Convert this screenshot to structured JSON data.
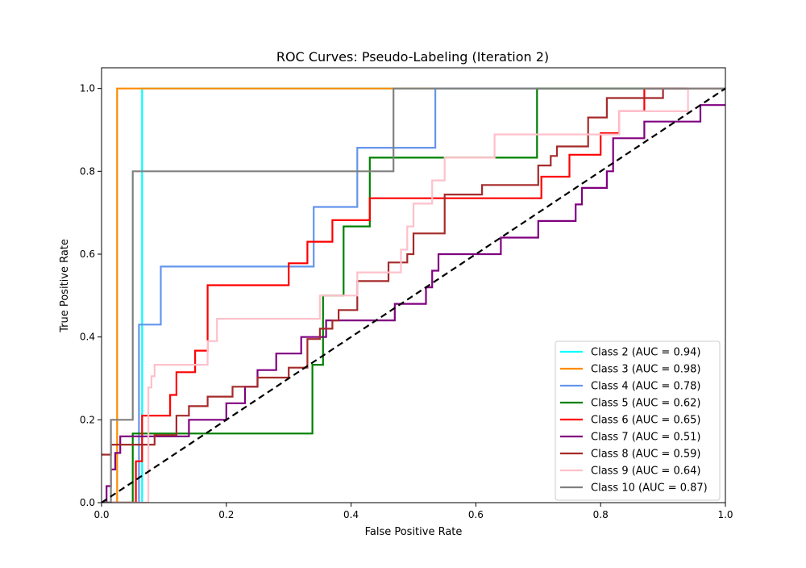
{
  "chart_data": {
    "type": "line",
    "title": "ROC Curves: Pseudo-Labeling (Iteration 2)",
    "xlabel": "False Positive Rate",
    "ylabel": "True Positive Rate",
    "xlim": [
      0,
      1
    ],
    "ylim": [
      0,
      1.05
    ],
    "xticks": [
      0,
      0.2,
      0.4,
      0.6,
      0.8,
      1
    ],
    "yticks": [
      0,
      0.2,
      0.4,
      0.6,
      0.8,
      1
    ],
    "xtick_labels": [
      "0.0",
      "0.2",
      "0.4",
      "0.6",
      "0.8",
      "1.0"
    ],
    "ytick_labels": [
      "0.0",
      "0.2",
      "0.4",
      "0.6",
      "0.8",
      "1.0"
    ],
    "grid": false,
    "legend_position": "lower-right",
    "diagonal": {
      "x": [
        0,
        1
      ],
      "y": [
        0,
        1
      ],
      "color": "#000000",
      "style": "dashed"
    },
    "series": [
      {
        "name": "Class 2 (AUC = 0.94)",
        "color": "#00ffff",
        "x": [
          0.0,
          0.065,
          0.065,
          1.0
        ],
        "y": [
          0.0,
          0.0,
          1.0,
          1.0
        ]
      },
      {
        "name": "Class 3 (AUC = 0.98)",
        "color": "#ff8c00",
        "x": [
          0.0,
          0.025,
          0.025,
          1.0
        ],
        "y": [
          0.0,
          0.0,
          1.0,
          1.0
        ]
      },
      {
        "name": "Class 4 (AUC = 0.78)",
        "color": "#6495ed",
        "x": [
          0.0,
          0.06,
          0.06,
          0.095,
          0.095,
          0.34,
          0.34,
          0.41,
          0.41,
          0.535,
          0.535,
          1.0
        ],
        "y": [
          0.0,
          0.0,
          0.43,
          0.43,
          0.57,
          0.57,
          0.714,
          0.714,
          0.857,
          0.857,
          1.0,
          1.0
        ]
      },
      {
        "name": "Class 5 (AUC = 0.62)",
        "color": "#008000",
        "x": [
          0.0,
          0.05,
          0.05,
          0.338,
          0.338,
          0.355,
          0.355,
          0.388,
          0.388,
          0.43,
          0.43,
          0.57,
          0.57,
          0.698,
          0.698,
          1.0
        ],
        "y": [
          0.0,
          0.0,
          0.167,
          0.167,
          0.333,
          0.333,
          0.5,
          0.5,
          0.667,
          0.667,
          0.833,
          0.833,
          0.833,
          0.833,
          1.0,
          1.0
        ]
      },
      {
        "name": "Class 6 (AUC = 0.65)",
        "color": "#ff0000",
        "x": [
          0.0,
          0.055,
          0.055,
          0.065,
          0.065,
          0.11,
          0.11,
          0.12,
          0.12,
          0.15,
          0.15,
          0.17,
          0.17,
          0.3,
          0.3,
          0.33,
          0.33,
          0.37,
          0.37,
          0.43,
          0.43,
          0.5,
          0.5,
          0.705,
          0.705,
          0.75,
          0.75,
          0.8,
          0.8,
          0.83,
          0.83,
          0.86,
          0.86,
          0.87,
          0.87,
          0.95,
          0.95,
          1.0
        ],
        "y": [
          0.0,
          0.0,
          0.1,
          0.1,
          0.21,
          0.21,
          0.26,
          0.26,
          0.315,
          0.315,
          0.367,
          0.367,
          0.525,
          0.525,
          0.578,
          0.578,
          0.63,
          0.63,
          0.682,
          0.682,
          0.735,
          0.735,
          0.735,
          0.735,
          0.787,
          0.787,
          0.84,
          0.84,
          0.892,
          0.892,
          0.945,
          0.945,
          0.945,
          0.945,
          1.0,
          1.0,
          1.0,
          1.0
        ]
      },
      {
        "name": "Class 7 (AUC = 0.51)",
        "color": "#800080",
        "x": [
          0.0,
          0.008,
          0.008,
          0.015,
          0.015,
          0.022,
          0.022,
          0.03,
          0.03,
          0.14,
          0.14,
          0.2,
          0.2,
          0.23,
          0.23,
          0.25,
          0.25,
          0.28,
          0.28,
          0.32,
          0.32,
          0.36,
          0.36,
          0.47,
          0.47,
          0.52,
          0.52,
          0.53,
          0.53,
          0.54,
          0.54,
          0.64,
          0.64,
          0.7,
          0.7,
          0.76,
          0.76,
          0.77,
          0.77,
          0.81,
          0.81,
          0.82,
          0.82,
          0.87,
          0.87,
          0.96,
          0.96,
          1.0
        ],
        "y": [
          0.0,
          0.0,
          0.04,
          0.04,
          0.08,
          0.08,
          0.12,
          0.12,
          0.16,
          0.16,
          0.2,
          0.2,
          0.24,
          0.24,
          0.28,
          0.28,
          0.32,
          0.32,
          0.36,
          0.36,
          0.4,
          0.4,
          0.44,
          0.44,
          0.48,
          0.48,
          0.52,
          0.52,
          0.56,
          0.56,
          0.6,
          0.6,
          0.64,
          0.64,
          0.68,
          0.68,
          0.72,
          0.72,
          0.76,
          0.76,
          0.8,
          0.8,
          0.88,
          0.88,
          0.92,
          0.92,
          0.96,
          0.96
        ]
      },
      {
        "name": "Class 8 (AUC = 0.59)",
        "color": "#a52a2a",
        "x": [
          0.0,
          0.015,
          0.015,
          0.085,
          0.085,
          0.12,
          0.12,
          0.14,
          0.14,
          0.17,
          0.17,
          0.21,
          0.21,
          0.25,
          0.25,
          0.3,
          0.3,
          0.33,
          0.33,
          0.35,
          0.35,
          0.37,
          0.37,
          0.38,
          0.38,
          0.41,
          0.41,
          0.46,
          0.46,
          0.49,
          0.49,
          0.5,
          0.5,
          0.55,
          0.55,
          0.61,
          0.61,
          0.7,
          0.7,
          0.72,
          0.72,
          0.73,
          0.73,
          0.78,
          0.78,
          0.8,
          0.8,
          0.81,
          0.81,
          0.9,
          0.9,
          1.0
        ],
        "y": [
          0.116,
          0.116,
          0.14,
          0.14,
          0.163,
          0.163,
          0.21,
          0.21,
          0.233,
          0.233,
          0.256,
          0.256,
          0.28,
          0.28,
          0.302,
          0.302,
          0.326,
          0.326,
          0.395,
          0.395,
          0.42,
          0.42,
          0.44,
          0.44,
          0.465,
          0.465,
          0.535,
          0.535,
          0.58,
          0.58,
          0.6,
          0.6,
          0.65,
          0.65,
          0.744,
          0.744,
          0.767,
          0.767,
          0.814,
          0.814,
          0.837,
          0.837,
          0.86,
          0.86,
          0.93,
          0.93,
          0.93,
          0.93,
          0.977,
          0.977,
          1.0,
          1.0
        ]
      },
      {
        "name": "Class 9 (AUC = 0.64)",
        "color": "#ffc0cb",
        "x": [
          0.0,
          0.075,
          0.075,
          0.08,
          0.08,
          0.085,
          0.085,
          0.17,
          0.17,
          0.185,
          0.185,
          0.2,
          0.2,
          0.35,
          0.35,
          0.41,
          0.41,
          0.48,
          0.48,
          0.49,
          0.49,
          0.5,
          0.5,
          0.52,
          0.52,
          0.53,
          0.53,
          0.55,
          0.55,
          0.63,
          0.63,
          0.83,
          0.83,
          0.94,
          0.94,
          1.0
        ],
        "y": [
          0.0,
          0.0,
          0.278,
          0.278,
          0.305,
          0.305,
          0.333,
          0.333,
          0.39,
          0.39,
          0.444,
          0.444,
          0.444,
          0.444,
          0.5,
          0.5,
          0.556,
          0.556,
          0.611,
          0.611,
          0.667,
          0.667,
          0.722,
          0.722,
          0.722,
          0.722,
          0.778,
          0.778,
          0.833,
          0.833,
          0.889,
          0.889,
          0.945,
          0.945,
          1.0,
          1.0
        ]
      },
      {
        "name": "Class 10 (AUC = 0.87)",
        "color": "#808080",
        "x": [
          0.0,
          0.015,
          0.015,
          0.05,
          0.05,
          0.468,
          0.468,
          1.0
        ],
        "y": [
          0.0,
          0.0,
          0.2,
          0.2,
          0.8,
          0.8,
          1.0,
          1.0
        ]
      }
    ]
  }
}
